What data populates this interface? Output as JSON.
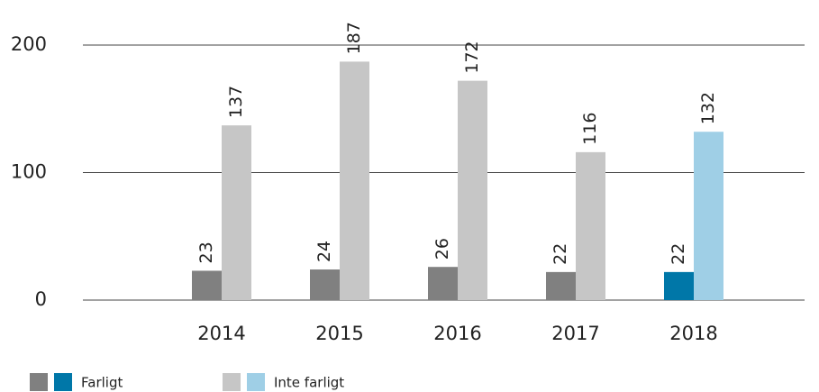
{
  "chart_data": {
    "type": "bar",
    "categories": [
      "2014",
      "2015",
      "2016",
      "2017",
      "2018"
    ],
    "series": [
      {
        "name": "Farligt",
        "colors": [
          "#808080",
          "#808080",
          "#808080",
          "#808080",
          "#0077a8"
        ],
        "values": [
          23,
          24,
          26,
          22,
          22
        ]
      },
      {
        "name": "Inte farligt",
        "colors": [
          "#c6c6c6",
          "#c6c6c6",
          "#c6c6c6",
          "#c6c6c6",
          "#9fcfe6"
        ],
        "values": [
          137,
          187,
          172,
          116,
          132
        ]
      }
    ],
    "ylim": [
      0,
      200
    ],
    "yticks": [
      0,
      100,
      200
    ],
    "grid": true
  }
}
